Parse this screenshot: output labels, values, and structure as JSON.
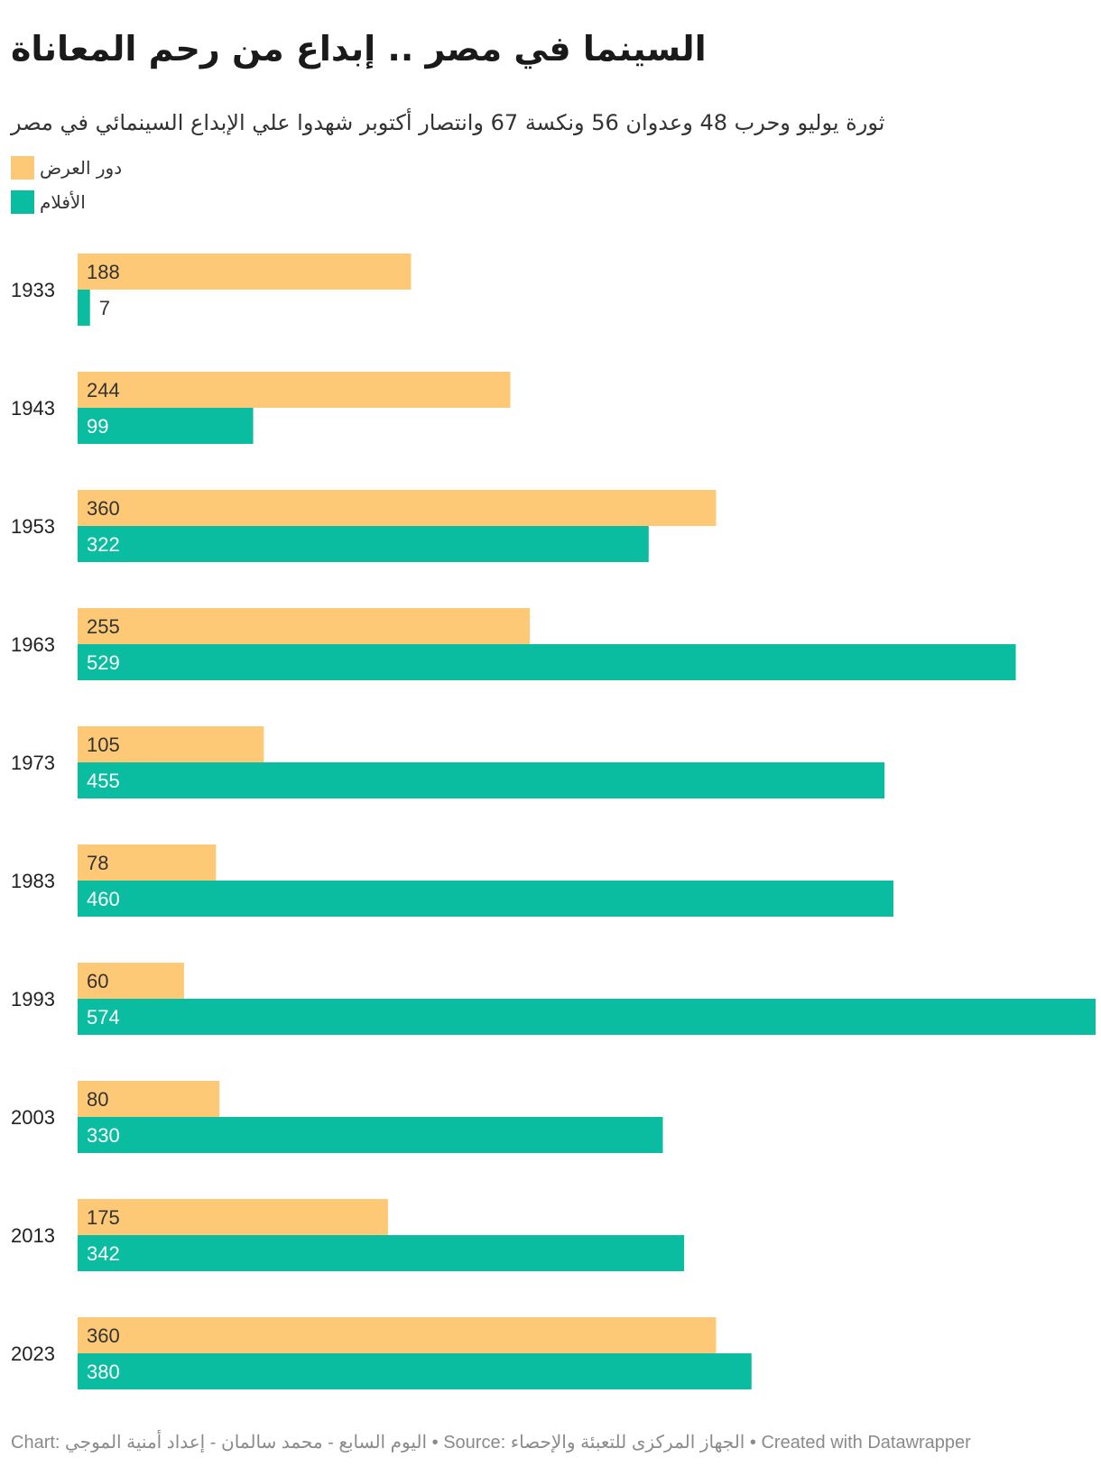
{
  "title": "السينما في مصر .. إبداع من رحم المعاناة",
  "subtitle": "ثورة يوليو وحرب 48 وعدوان 56 ونكسة 67 وانتصار أكتوبر شهدوا علي الإبداع السينمائي في مصر",
  "footer": "Chart: اليوم السابع - محمد سالمان - إعداد أمنية الموجي • Source: الجهاز المركزى للتعبئة والإحصاء • Created with Datawrapper",
  "colors": {
    "theaters": "#fec977",
    "films": "#0abda0",
    "label_dark": "#333333",
    "label_light": "#ffffff"
  },
  "chart_data": {
    "type": "bar",
    "orientation": "horizontal",
    "grouped": true,
    "categories": [
      "1933",
      "1943",
      "1953",
      "1963",
      "1973",
      "1983",
      "1993",
      "2003",
      "2013",
      "2023"
    ],
    "series": [
      {
        "name": "دور العرض",
        "color": "#fec977",
        "values": [
          188,
          244,
          360,
          255,
          105,
          78,
          60,
          80,
          175,
          360
        ]
      },
      {
        "name": "الأفلام",
        "color": "#0abda0",
        "values": [
          7,
          99,
          322,
          529,
          455,
          460,
          574,
          330,
          342,
          380
        ]
      }
    ],
    "xlim": [
      0,
      574
    ],
    "grid": false,
    "legend_position": "top-left",
    "data_labels": "inside-left"
  }
}
